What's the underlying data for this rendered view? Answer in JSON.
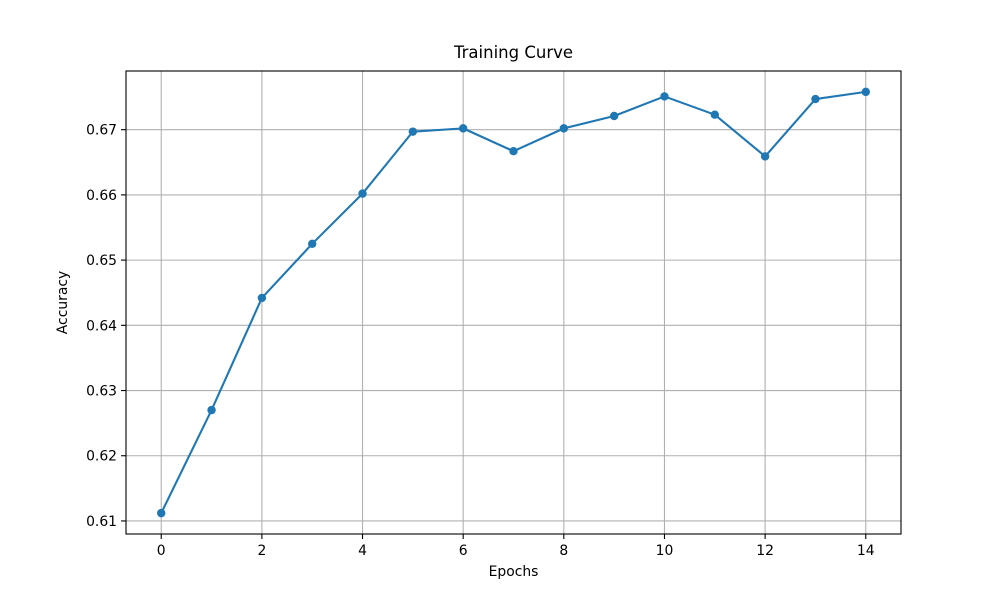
{
  "chart_data": {
    "type": "line",
    "title": "Training Curve",
    "xlabel": "Epochs",
    "ylabel": "Accuracy",
    "x": [
      0,
      1,
      2,
      3,
      4,
      5,
      6,
      7,
      8,
      9,
      10,
      11,
      12,
      13,
      14
    ],
    "series": [
      {
        "name": "accuracy",
        "values": [
          0.6112,
          0.627,
          0.6442,
          0.6525,
          0.6602,
          0.6697,
          0.6702,
          0.6667,
          0.6702,
          0.6721,
          0.6751,
          0.6723,
          0.6659,
          0.6747,
          0.6758
        ],
        "color": "#1f77b4",
        "marker": "circle",
        "line_style": "solid"
      }
    ],
    "xlim": [
      -0.7,
      14.7
    ],
    "ylim": [
      0.608,
      0.679
    ],
    "xticks": [
      0,
      2,
      4,
      6,
      8,
      10,
      12,
      14
    ],
    "xtick_labels": [
      "0",
      "2",
      "4",
      "6",
      "8",
      "10",
      "12",
      "14"
    ],
    "yticks": [
      0.61,
      0.62,
      0.63,
      0.64,
      0.65,
      0.66,
      0.67
    ],
    "ytick_labels": [
      "0.61",
      "0.62",
      "0.63",
      "0.64",
      "0.65",
      "0.66",
      "0.67"
    ],
    "grid": true,
    "legend": "none",
    "colors": {
      "line": "#1f77b4",
      "grid": "#b0b0b0",
      "spine": "#000000",
      "background": "#ffffff",
      "text": "#000000"
    }
  }
}
